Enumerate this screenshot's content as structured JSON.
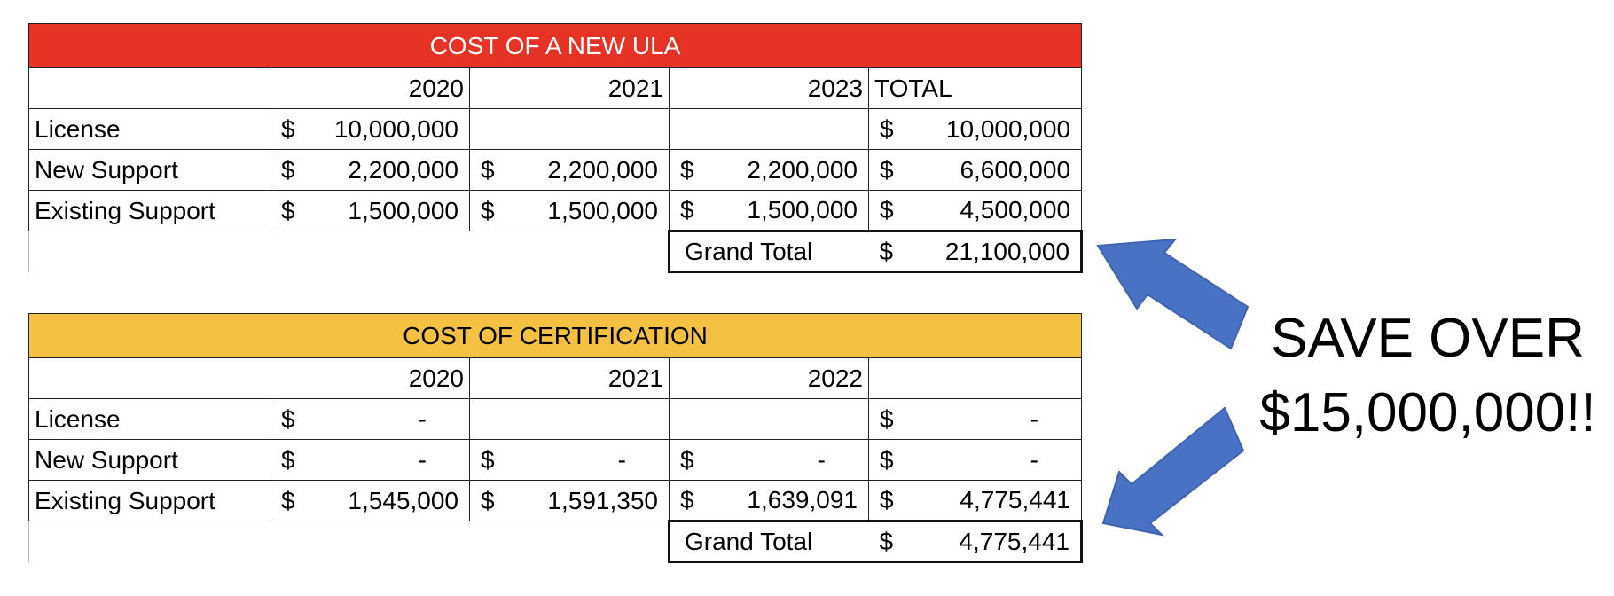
{
  "ula": {
    "title": "COST OF A NEW ULA",
    "years": [
      "2020",
      "2021",
      "2023"
    ],
    "total_label": "TOTAL",
    "currency": "$",
    "rows": [
      {
        "label": "License",
        "v1": "10,000,000",
        "v2": "",
        "v3": "",
        "total": "10,000,000"
      },
      {
        "label": "New Support",
        "v1": "2,200,000",
        "v2": "2,200,000",
        "v3": "2,200,000",
        "total": "6,600,000"
      },
      {
        "label": "Existing Support",
        "v1": "1,500,000",
        "v2": "1,500,000",
        "v3": "1,500,000",
        "total": "4,500,000"
      }
    ],
    "grand_total_label": "Grand Total",
    "grand_total_value": "21,100,000",
    "header_color": "#e63326"
  },
  "cert": {
    "title": "COST OF CERTIFICATION",
    "years": [
      "2020",
      "2021",
      "2022"
    ],
    "total_label": "",
    "currency": "$",
    "rows": [
      {
        "label": "License",
        "v1": "-",
        "v2": "",
        "v3": "",
        "total": "-"
      },
      {
        "label": "New Support",
        "v1": "-",
        "v2": "-",
        "v3": "-",
        "total": "-"
      },
      {
        "label": "Existing Support",
        "v1": "1,545,000",
        "v2": "1,591,350",
        "v3": "1,639,091",
        "total": "4,775,441"
      }
    ],
    "grand_total_label": "Grand Total",
    "grand_total_value": "4,775,441",
    "header_color": "#f4c143"
  },
  "callout": {
    "line1": "SAVE OVER",
    "line2": "$15,000,000!!",
    "arrow_color": "#4a72c4",
    "arrow_up_icon": "arrow-up-left",
    "arrow_down_icon": "arrow-down-left"
  }
}
